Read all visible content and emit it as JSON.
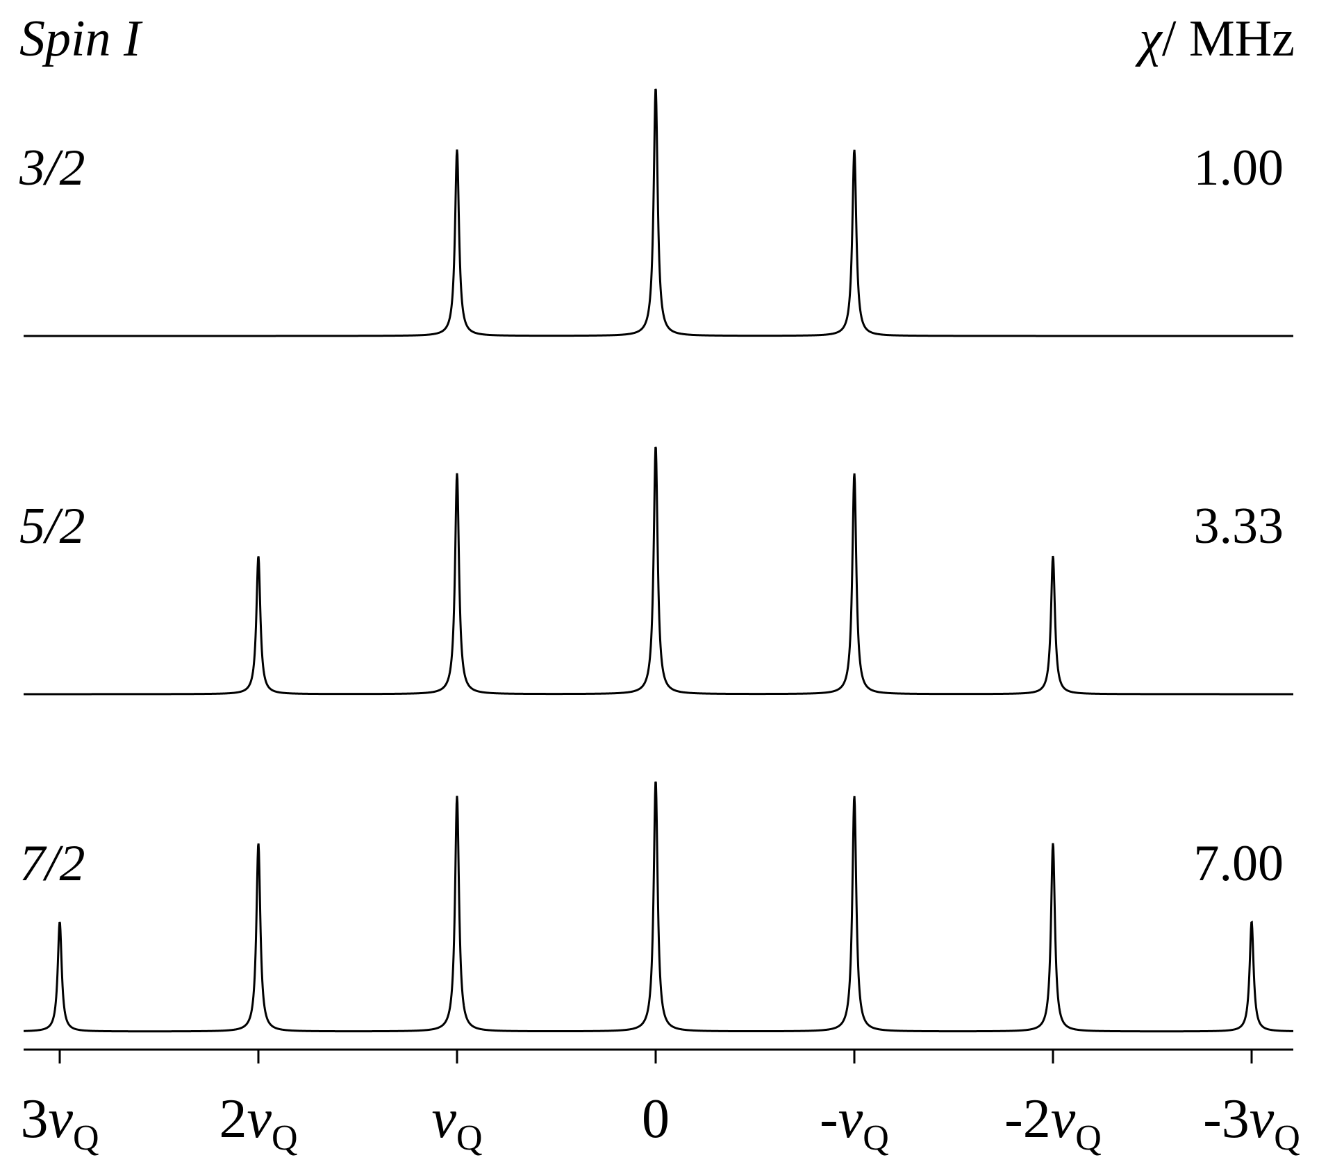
{
  "chart_data": {
    "type": "line",
    "header": {
      "left_label": "Spin I",
      "right_label_symbol": "χ",
      "right_label_unit": "/ MHz"
    },
    "x_axis": {
      "direction": "decreasing",
      "range": [
        3,
        -3
      ],
      "ticks": [
        {
          "value": 3,
          "prefix": "3",
          "symbol": "ν",
          "subscript": "Q"
        },
        {
          "value": 2,
          "prefix": "2",
          "symbol": "ν",
          "subscript": "Q"
        },
        {
          "value": 1,
          "prefix": "",
          "symbol": "ν",
          "subscript": "Q"
        },
        {
          "value": 0,
          "prefix": "0",
          "symbol": "",
          "subscript": ""
        },
        {
          "value": -1,
          "prefix": "-",
          "symbol": "ν",
          "subscript": "Q"
        },
        {
          "value": -2,
          "prefix": "-2",
          "symbol": "ν",
          "subscript": "Q"
        },
        {
          "value": -3,
          "prefix": "-3",
          "symbol": "ν",
          "subscript": "Q"
        }
      ]
    },
    "series": [
      {
        "spin": "3/2",
        "chi": "1.00",
        "peaks": [
          {
            "x": 1,
            "height": 0.75
          },
          {
            "x": 0,
            "height": 1.0
          },
          {
            "x": -1,
            "height": 0.75
          }
        ]
      },
      {
        "spin": "5/2",
        "chi": "3.33",
        "peaks": [
          {
            "x": 2,
            "height": 0.556
          },
          {
            "x": 1,
            "height": 0.889
          },
          {
            "x": 0,
            "height": 1.0
          },
          {
            "x": -1,
            "height": 0.889
          },
          {
            "x": -2,
            "height": 0.556
          }
        ]
      },
      {
        "spin": "7/2",
        "chi": "7.00",
        "peaks": [
          {
            "x": 3,
            "height": 0.4375
          },
          {
            "x": 2,
            "height": 0.75
          },
          {
            "x": 1,
            "height": 0.9375
          },
          {
            "x": 0,
            "height": 1.0
          },
          {
            "x": -1,
            "height": 0.9375
          },
          {
            "x": -2,
            "height": 0.75
          },
          {
            "x": -3,
            "height": 0.4375
          }
        ]
      }
    ],
    "grid": false,
    "legend": "none"
  }
}
